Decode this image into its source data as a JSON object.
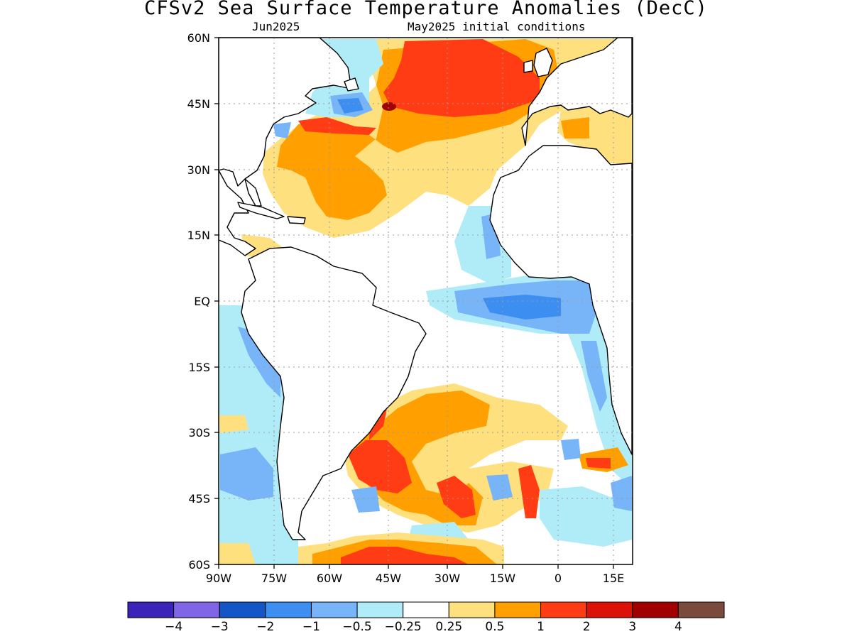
{
  "title": "CFSv2 Sea Surface Temperature Anomalies (DecC)",
  "subtitle_left": "Jun2025",
  "subtitle_right": "May2025 initial conditions",
  "map": {
    "lat_labels": [
      "60N",
      "45N",
      "30N",
      "15N",
      "EQ",
      "15S",
      "30S",
      "45S",
      "60S"
    ],
    "lon_labels": [
      "90W",
      "75W",
      "60W",
      "45W",
      "30W",
      "15W",
      "0",
      "15E"
    ],
    "land_color": "#ffffff",
    "coast_color": "#000000",
    "grid": "dotted"
  },
  "colorbar": {
    "colors": [
      "#3b22b8",
      "#8066e6",
      "#1455c8",
      "#3c8ef0",
      "#78b4f8",
      "#b0ecf8",
      "#ffffff",
      "#ffe07e",
      "#ffa000",
      "#ff3c14",
      "#dc1208",
      "#a00000",
      "#7a4a3c"
    ],
    "labels": [
      "−4",
      "−3",
      "−2",
      "−1",
      "−0.5",
      "−0.25",
      "0.25",
      "0.5",
      "1",
      "2",
      "3",
      "4"
    ]
  }
}
